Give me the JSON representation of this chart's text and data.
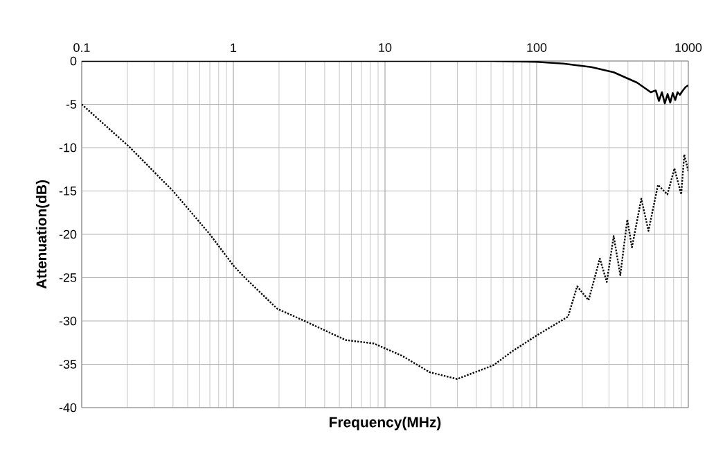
{
  "chart_data": {
    "type": "line",
    "xlabel": "Frequency(MHz)",
    "ylabel": "Attenuation(dB)",
    "log": "x",
    "grid": true,
    "marker": "none",
    "xlim": [
      0.1,
      1000
    ],
    "xticks": [
      0.1,
      1,
      10,
      100,
      1000
    ],
    "ylim": [
      -40,
      0
    ],
    "yticks": [
      0,
      -5,
      -10,
      -15,
      -20,
      -25,
      -30,
      -35,
      -40
    ],
    "series": [
      {
        "color": "#000000",
        "line_style": "solid",
        "x": [
          0.1,
          1,
          10,
          50,
          100,
          150,
          229,
          322,
          460,
          565,
          610,
          640,
          670,
          700,
          730,
          760,
          790,
          820,
          850,
          880,
          920,
          960,
          1000
        ],
        "values": [
          0,
          0,
          0,
          0,
          -0.1,
          -0.3,
          -0.7,
          -1.3,
          -2.5,
          -3.6,
          -3.4,
          -4.6,
          -3.6,
          -4.9,
          -3.8,
          -4.8,
          -3.7,
          -4.5,
          -3.6,
          -3.9,
          -3.4,
          -3.0,
          -2.8
        ]
      },
      {
        "color": "#000000",
        "line_style": "dotted",
        "x": [
          0.1,
          0.206,
          0.4,
          0.7,
          1,
          1.19,
          1.95,
          2.95,
          5.5,
          8.45,
          12.9,
          19.6,
          29.9,
          52,
          69,
          101.6,
          161,
          185,
          220,
          261,
          290,
          322,
          356,
          396,
          425,
          490,
          546,
          631,
          728,
          810,
          898,
          940,
          1000
        ],
        "values": [
          -5,
          -9.9,
          -15,
          -20,
          -23.6,
          -25,
          -28.6,
          -30,
          -32.2,
          -32.6,
          -34,
          -35.9,
          -36.7,
          -35.1,
          -33.5,
          -31.6,
          -29.5,
          -26,
          -27.6,
          -22.8,
          -25.5,
          -20.2,
          -24.7,
          -18.3,
          -21.5,
          -15.9,
          -19.6,
          -14.3,
          -15.4,
          -12.4,
          -15.4,
          -10.8,
          -12.7
        ]
      }
    ]
  }
}
